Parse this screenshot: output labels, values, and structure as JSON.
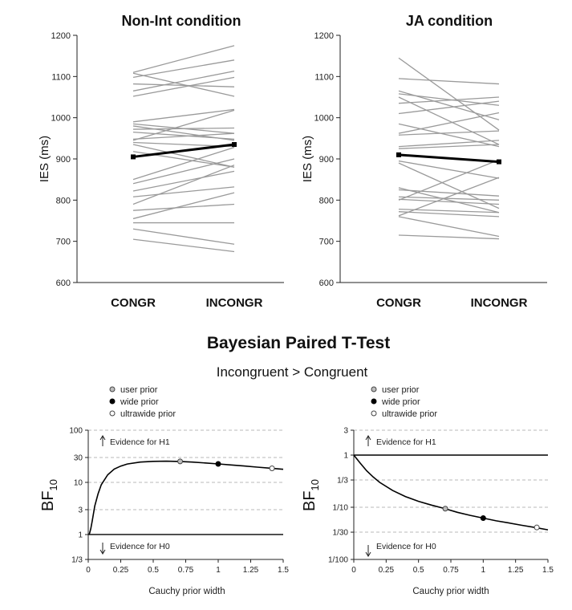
{
  "section": {
    "title": "Bayesian Paired T-Test",
    "subtitle": "Incongruent > Congruent"
  },
  "chart_data": [
    {
      "type": "line",
      "title": "Non-Int condition",
      "ylabel": "IES (ms)",
      "categories": [
        "CONGR",
        "INCONGR"
      ],
      "ylim": [
        600,
        1200
      ],
      "yticks": [
        600,
        700,
        800,
        900,
        1000,
        1100,
        1200
      ],
      "mean": [
        905,
        935
      ],
      "subjects": [
        [
          1110,
          1175
        ],
        [
          1108,
          1052
        ],
        [
          1098,
          1140
        ],
        [
          1082,
          1075
        ],
        [
          1065,
          1113
        ],
        [
          1052,
          1098
        ],
        [
          990,
          1020
        ],
        [
          985,
          962
        ],
        [
          980,
          945
        ],
        [
          972,
          975
        ],
        [
          965,
          948
        ],
        [
          948,
          962
        ],
        [
          945,
          1018
        ],
        [
          940,
          930
        ],
        [
          935,
          880
        ],
        [
          918,
          880
        ],
        [
          850,
          928
        ],
        [
          840,
          900
        ],
        [
          822,
          870
        ],
        [
          808,
          832
        ],
        [
          790,
          885
        ],
        [
          775,
          790
        ],
        [
          755,
          818
        ],
        [
          745,
          745
        ],
        [
          730,
          693
        ],
        [
          705,
          675
        ]
      ]
    },
    {
      "type": "line",
      "title": "JA condition",
      "ylabel": "IES (ms)",
      "categories": [
        "CONGR",
        "INCONGR"
      ],
      "ylim": [
        600,
        1200
      ],
      "yticks": [
        600,
        700,
        800,
        900,
        1000,
        1100,
        1200
      ],
      "mean": [
        910,
        893
      ],
      "subjects": [
        [
          1145,
          970
        ],
        [
          1095,
          1082
        ],
        [
          1065,
          995
        ],
        [
          1058,
          1030
        ],
        [
          1050,
          935
        ],
        [
          1035,
          1050
        ],
        [
          1010,
          1040
        ],
        [
          985,
          930
        ],
        [
          962,
          1012
        ],
        [
          958,
          968
        ],
        [
          930,
          945
        ],
        [
          925,
          935
        ],
        [
          895,
          853
        ],
        [
          890,
          780
        ],
        [
          830,
          770
        ],
        [
          825,
          810
        ],
        [
          808,
          800
        ],
        [
          802,
          790
        ],
        [
          800,
          898
        ],
        [
          778,
          770
        ],
        [
          772,
          760
        ],
        [
          762,
          855
        ],
        [
          760,
          712
        ],
        [
          715,
          706
        ]
      ]
    },
    {
      "type": "line",
      "xlabel": "Cauchy prior width",
      "ylabel": "BF",
      "ylabel_sub": "10",
      "xlim": [
        0,
        1.5
      ],
      "xticks": [
        "0",
        "0.25",
        "0.5",
        "0.75",
        "1",
        "1.25",
        "1.5"
      ],
      "yscale": "log",
      "ylim": [
        0.3333,
        100
      ],
      "yticks": [
        {
          "label": "1/3",
          "value": 0.3333
        },
        {
          "label": "1",
          "value": 1
        },
        {
          "label": "3",
          "value": 3
        },
        {
          "label": "10",
          "value": 10
        },
        {
          "label": "30",
          "value": 30
        },
        {
          "label": "100",
          "value": 100
        }
      ],
      "curve_x": [
        0.005,
        0.01,
        0.02,
        0.03,
        0.05,
        0.075,
        0.1,
        0.15,
        0.2,
        0.25,
        0.3,
        0.4,
        0.5,
        0.6,
        0.7,
        0.8,
        0.9,
        1.0,
        1.1,
        1.2,
        1.3,
        1.4,
        1.5
      ],
      "curve_y": [
        1.0,
        1.05,
        1.3,
        1.8,
        3.5,
        6.0,
        9.0,
        14.0,
        18.0,
        20.5,
        22.5,
        24.5,
        25.3,
        25.5,
        25.2,
        24.5,
        23.6,
        22.6,
        21.6,
        20.6,
        19.6,
        18.7,
        17.8
      ],
      "markers": [
        {
          "label": "user prior",
          "x": 0.707,
          "y": 25.2,
          "style": "grey"
        },
        {
          "label": "wide prior",
          "x": 1.0,
          "y": 22.6,
          "style": "black"
        },
        {
          "label": "ultrawide prior",
          "x": 1.414,
          "y": 18.6,
          "style": "white"
        }
      ],
      "evidence_h1": "Evidence for H1",
      "evidence_h0": "Evidence for H0"
    },
    {
      "type": "line",
      "xlabel": "Cauchy prior width",
      "ylabel": "BF",
      "ylabel_sub": "10",
      "xlim": [
        0,
        1.5
      ],
      "xticks": [
        "0",
        "0.25",
        "0.5",
        "0.75",
        "1",
        "1.25",
        "1.5"
      ],
      "yscale": "log",
      "ylim": [
        0.01,
        3
      ],
      "yticks": [
        {
          "label": "1/100",
          "value": 0.01
        },
        {
          "label": "1/30",
          "value": 0.0333
        },
        {
          "label": "1/10",
          "value": 0.1
        },
        {
          "label": "1/3",
          "value": 0.3333
        },
        {
          "label": "1",
          "value": 1
        },
        {
          "label": "3",
          "value": 3
        }
      ],
      "curve_x": [
        0.0,
        0.05,
        0.1,
        0.15,
        0.2,
        0.3,
        0.4,
        0.5,
        0.6,
        0.7,
        0.8,
        0.9,
        1.0,
        1.1,
        1.2,
        1.3,
        1.4,
        1.5
      ],
      "curve_y": [
        1.0,
        0.7,
        0.5,
        0.38,
        0.3,
        0.21,
        0.16,
        0.13,
        0.11,
        0.095,
        0.08,
        0.07,
        0.062,
        0.055,
        0.05,
        0.045,
        0.041,
        0.037
      ],
      "markers": [
        {
          "label": "user prior",
          "x": 0.707,
          "y": 0.094,
          "style": "grey"
        },
        {
          "label": "wide prior",
          "x": 1.0,
          "y": 0.062,
          "style": "black"
        },
        {
          "label": "ultrawide prior",
          "x": 1.414,
          "y": 0.041,
          "style": "white"
        }
      ],
      "evidence_h1": "Evidence for H1",
      "evidence_h0": "Evidence for H0"
    }
  ]
}
